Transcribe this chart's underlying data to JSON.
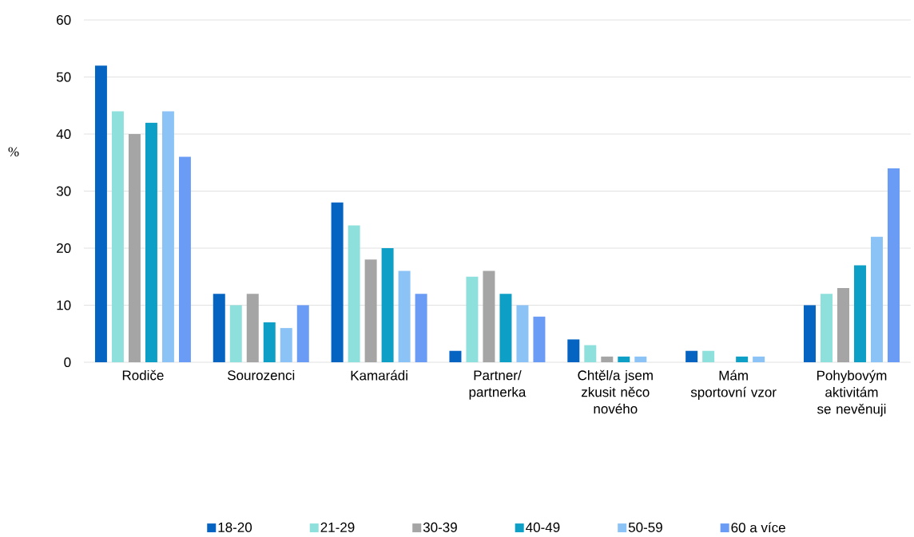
{
  "chart_data": {
    "type": "bar",
    "ylabel": "%",
    "categories": [
      "Rodiče",
      "Sourozenci",
      "Kamarádi",
      "Partner/ partnerka",
      "Chtěl/a jsem zkusit něco nového",
      "Mám sportovní vzor",
      "Pohybovým aktivitám se nevěnuji"
    ],
    "series": [
      {
        "name": "18-20",
        "color": "#0563c1",
        "values": [
          52,
          12,
          28,
          2,
          4,
          2,
          10
        ]
      },
      {
        "name": "21-29",
        "color": "#8ee0dc",
        "values": [
          44,
          10,
          24,
          15,
          3,
          2,
          12
        ]
      },
      {
        "name": "30-39",
        "color": "#a5a5a5",
        "values": [
          40,
          12,
          18,
          16,
          1,
          0,
          13
        ]
      },
      {
        "name": "40-49",
        "color": "#0e9fc6",
        "values": [
          42,
          7,
          20,
          12,
          1,
          1,
          17
        ]
      },
      {
        "name": "50-59",
        "color": "#8cc3f7",
        "values": [
          44,
          6,
          16,
          10,
          1,
          1,
          22
        ]
      },
      {
        "name": "60 a více",
        "color": "#6a9cf6",
        "values": [
          36,
          10,
          12,
          8,
          0,
          0,
          34
        ]
      }
    ],
    "ylim": [
      0,
      60
    ],
    "yticks": [
      0,
      10,
      20,
      30,
      40,
      50,
      60
    ],
    "grid": "y",
    "legend": "bottom"
  }
}
